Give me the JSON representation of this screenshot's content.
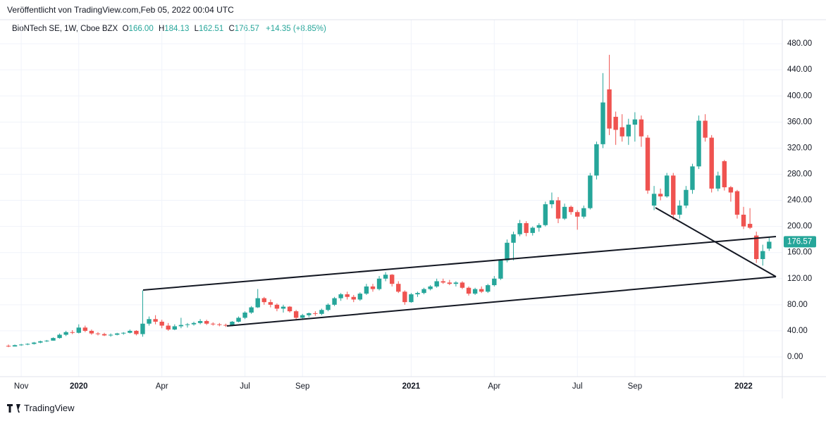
{
  "published": "Veröffentlicht von TradingView.com,Feb 05, 2022 00:04 UTC",
  "footer": "TradingView",
  "legend": {
    "symbol": "BioNTech SE, 1W, Cboe BZX",
    "ohlc": [
      {
        "label": "O",
        "value": "166.00"
      },
      {
        "label": "H",
        "value": "184.13"
      },
      {
        "label": "L",
        "value": "162.51"
      },
      {
        "label": "C",
        "value": "176.57"
      }
    ],
    "change": "+14.35 (+8.85%)"
  },
  "chart_data": {
    "type": "candlestick",
    "up_color": "#26a69a",
    "down_color": "#ef5350",
    "ylim": [
      -30.2,
      516.8
    ],
    "yticks": [
      {
        "value": 0,
        "label": "0.00"
      },
      {
        "value": 40,
        "label": "40.00"
      },
      {
        "value": 80,
        "label": "80.00"
      },
      {
        "value": 120,
        "label": "120.00"
      },
      {
        "value": 160,
        "label": "160.00"
      },
      {
        "value": 200,
        "label": "200.00"
      },
      {
        "value": 240,
        "label": "240.00"
      },
      {
        "value": 280,
        "label": "280.00"
      },
      {
        "value": 320,
        "label": "320.00"
      },
      {
        "value": 360,
        "label": "360.00"
      },
      {
        "value": 400,
        "label": "400.00"
      },
      {
        "value": 440,
        "label": "440.00"
      },
      {
        "value": 480,
        "label": "480.00"
      }
    ],
    "grid": true,
    "last_price": {
      "value": 176.57,
      "label": "176.57"
    },
    "categories": [
      null,
      null,
      "Nov",
      null,
      null,
      null,
      null,
      null,
      null,
      null,
      null,
      "2020",
      null,
      null,
      null,
      null,
      null,
      null,
      null,
      null,
      null,
      null,
      null,
      null,
      "Apr",
      null,
      null,
      null,
      null,
      null,
      null,
      null,
      null,
      null,
      null,
      null,
      null,
      "Jul",
      null,
      null,
      null,
      null,
      null,
      null,
      null,
      null,
      "Sep",
      null,
      null,
      null,
      null,
      null,
      null,
      null,
      null,
      null,
      null,
      null,
      null,
      null,
      null,
      null,
      null,
      "2021",
      null,
      null,
      null,
      null,
      null,
      null,
      null,
      null,
      null,
      null,
      null,
      null,
      "Apr",
      null,
      null,
      null,
      null,
      null,
      null,
      null,
      null,
      null,
      null,
      null,
      null,
      "Jul",
      null,
      null,
      null,
      null,
      null,
      null,
      null,
      null,
      "Sep",
      null,
      null,
      null,
      null,
      null,
      null,
      null,
      null,
      null,
      null,
      null,
      null,
      null,
      null,
      null,
      null,
      "2022",
      null,
      null,
      null,
      null
    ],
    "ohlc": [
      [
        17,
        19,
        15,
        16
      ],
      [
        16,
        19,
        16,
        18
      ],
      [
        18,
        20,
        17,
        19
      ],
      [
        19,
        21,
        18,
        20
      ],
      [
        20,
        23,
        19,
        22
      ],
      [
        22,
        25,
        21,
        24
      ],
      [
        24,
        26,
        23,
        25
      ],
      [
        25,
        30,
        25,
        29
      ],
      [
        29,
        36,
        28,
        34
      ],
      [
        34,
        40,
        32,
        38
      ],
      [
        38,
        41,
        35,
        37
      ],
      [
        37,
        50,
        36,
        45
      ],
      [
        45,
        48,
        38,
        40
      ],
      [
        40,
        42,
        34,
        36
      ],
      [
        36,
        38,
        33,
        35
      ],
      [
        35,
        37,
        32,
        33
      ],
      [
        33,
        36,
        31,
        34
      ],
      [
        34,
        37,
        33,
        36
      ],
      [
        36,
        38,
        34,
        37
      ],
      [
        37,
        42,
        36,
        40
      ],
      [
        40,
        41,
        33,
        35
      ],
      [
        35,
        102,
        31,
        51
      ],
      [
        51,
        62,
        48,
        58
      ],
      [
        58,
        64,
        50,
        54
      ],
      [
        54,
        57,
        44,
        48
      ],
      [
        48,
        52,
        40,
        42
      ],
      [
        42,
        50,
        41,
        47
      ],
      [
        47,
        60,
        44,
        49
      ],
      [
        49,
        52,
        45,
        50
      ],
      [
        50,
        54,
        48,
        52
      ],
      [
        52,
        58,
        50,
        55
      ],
      [
        55,
        57,
        49,
        51
      ],
      [
        51,
        53,
        48,
        50
      ],
      [
        50,
        52,
        47,
        49
      ],
      [
        49,
        51,
        46,
        48
      ],
      [
        48,
        55,
        47,
        54
      ],
      [
        54,
        62,
        53,
        60
      ],
      [
        60,
        70,
        58,
        68
      ],
      [
        68,
        78,
        66,
        76
      ],
      [
        76,
        104,
        75,
        90
      ],
      [
        90,
        92,
        80,
        84
      ],
      [
        84,
        88,
        76,
        80
      ],
      [
        80,
        82,
        70,
        74
      ],
      [
        74,
        80,
        68,
        77
      ],
      [
        77,
        78,
        68,
        70
      ],
      [
        70,
        72,
        56,
        60
      ],
      [
        60,
        66,
        57,
        64
      ],
      [
        64,
        68,
        61,
        67
      ],
      [
        67,
        70,
        63,
        66
      ],
      [
        66,
        74,
        64,
        72
      ],
      [
        72,
        82,
        70,
        80
      ],
      [
        80,
        92,
        78,
        90
      ],
      [
        90,
        98,
        86,
        96
      ],
      [
        96,
        100,
        88,
        92
      ],
      [
        92,
        95,
        84,
        88
      ],
      [
        88,
        99,
        86,
        97
      ],
      [
        97,
        112,
        95,
        108
      ],
      [
        108,
        112,
        100,
        104
      ],
      [
        104,
        124,
        102,
        120
      ],
      [
        120,
        130,
        116,
        126
      ],
      [
        126,
        127,
        108,
        112
      ],
      [
        112,
        116,
        98,
        100
      ],
      [
        100,
        102,
        80,
        84
      ],
      [
        84,
        98,
        83,
        96
      ],
      [
        96,
        100,
        92,
        98
      ],
      [
        98,
        106,
        96,
        104
      ],
      [
        104,
        110,
        102,
        108
      ],
      [
        108,
        120,
        106,
        116
      ],
      [
        116,
        120,
        112,
        114
      ],
      [
        114,
        118,
        110,
        112
      ],
      [
        112,
        116,
        108,
        114
      ],
      [
        114,
        116,
        104,
        106
      ],
      [
        106,
        108,
        94,
        97
      ],
      [
        97,
        106,
        95,
        104
      ],
      [
        104,
        108,
        98,
        100
      ],
      [
        100,
        112,
        98,
        110
      ],
      [
        110,
        124,
        108,
        120
      ],
      [
        120,
        150,
        118,
        148
      ],
      [
        148,
        180,
        145,
        175
      ],
      [
        175,
        192,
        148,
        188
      ],
      [
        188,
        210,
        185,
        205
      ],
      [
        205,
        208,
        185,
        190
      ],
      [
        190,
        200,
        186,
        198
      ],
      [
        198,
        205,
        192,
        202
      ],
      [
        202,
        238,
        200,
        234
      ],
      [
        234,
        252,
        228,
        240
      ],
      [
        240,
        245,
        205,
        212
      ],
      [
        212,
        235,
        210,
        230
      ],
      [
        230,
        232,
        218,
        222
      ],
      [
        222,
        225,
        195,
        215
      ],
      [
        215,
        232,
        212,
        228
      ],
      [
        228,
        282,
        226,
        278
      ],
      [
        278,
        330,
        272,
        326
      ],
      [
        326,
        435,
        320,
        390
      ],
      [
        410,
        463,
        340,
        350
      ],
      [
        368,
        376,
        325,
        348
      ],
      [
        352,
        372,
        330,
        338
      ],
      [
        338,
        365,
        325,
        356
      ],
      [
        356,
        375,
        330,
        364
      ],
      [
        364,
        370,
        322,
        338
      ],
      [
        336,
        340,
        250,
        255
      ],
      [
        232,
        262,
        225,
        250
      ],
      [
        250,
        258,
        240,
        246
      ],
      [
        246,
        282,
        244,
        278
      ],
      [
        278,
        282,
        210,
        218
      ],
      [
        218,
        240,
        212,
        232
      ],
      [
        232,
        262,
        228,
        256
      ],
      [
        256,
        296,
        250,
        292
      ],
      [
        292,
        370,
        288,
        362
      ],
      [
        362,
        372,
        330,
        336
      ],
      [
        336,
        340,
        252,
        258
      ],
      [
        258,
        284,
        254,
        278
      ],
      [
        300,
        302,
        255,
        260
      ],
      [
        260,
        262,
        238,
        252
      ],
      [
        254,
        256,
        212,
        218
      ],
      [
        218,
        230,
        196,
        200
      ],
      [
        204,
        228,
        196,
        198
      ],
      [
        186,
        192,
        144,
        150
      ],
      [
        150,
        172,
        140,
        162.22
      ],
      [
        166,
        184.13,
        162.51,
        176.57
      ]
    ]
  }
}
